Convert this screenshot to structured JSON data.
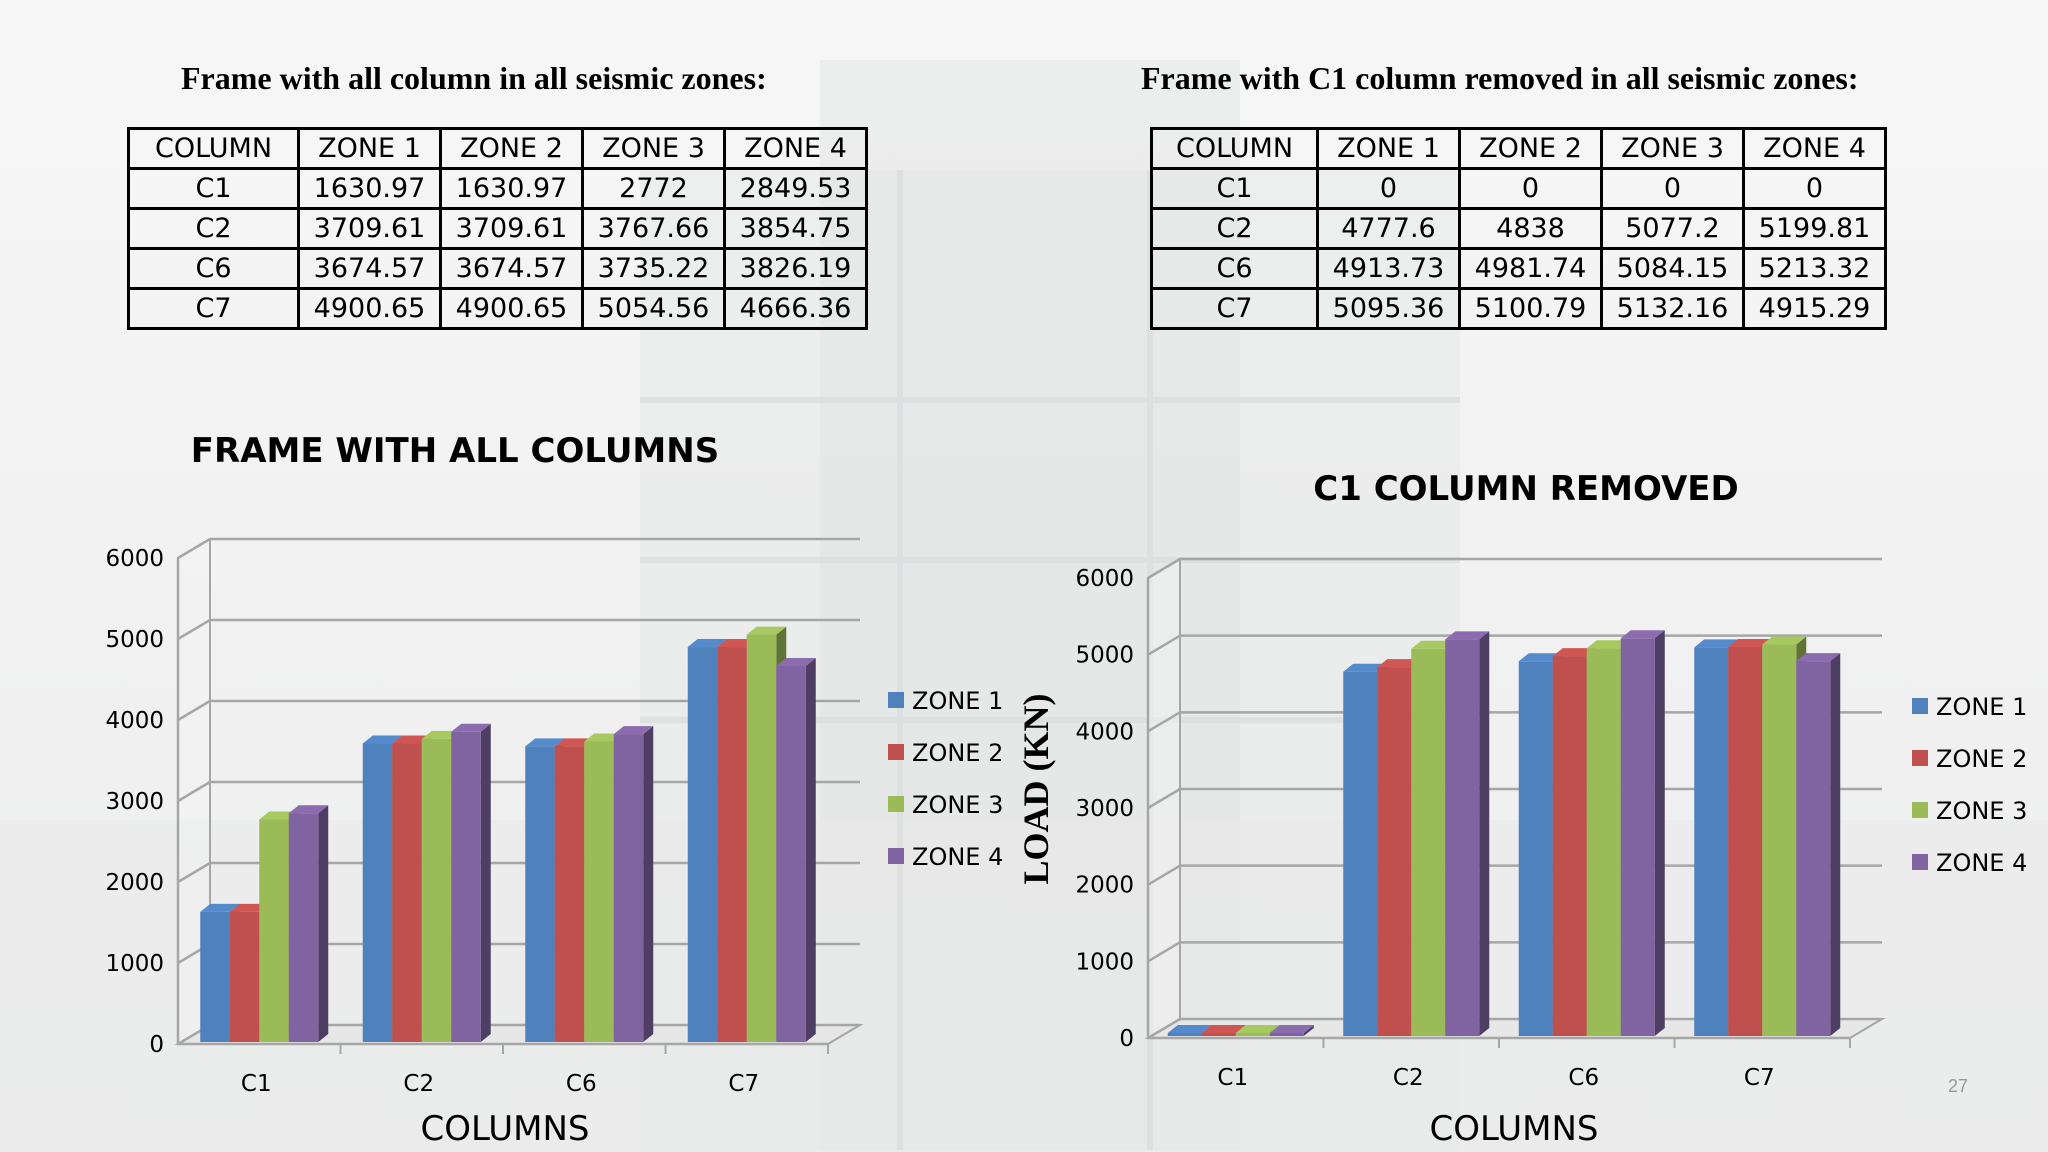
{
  "tables": [
    {
      "title": "Frame with all column in all seismic zones:",
      "headers": [
        "COLUMN",
        "ZONE 1",
        "ZONE 2",
        "ZONE 3",
        "ZONE 4"
      ],
      "rows": [
        [
          "C1",
          "1630.97",
          "1630.97",
          "2772",
          "2849.53"
        ],
        [
          "C2",
          "3709.61",
          "3709.61",
          "3767.66",
          "3854.75"
        ],
        [
          "C6",
          "3674.57",
          "3674.57",
          "3735.22",
          "3826.19"
        ],
        [
          "C7",
          "4900.65",
          "4900.65",
          "5054.56",
          "4666.36"
        ]
      ]
    },
    {
      "title": "Frame with C1 column removed in all seismic zones:",
      "headers": [
        "COLUMN",
        "ZONE 1",
        "ZONE 2",
        "ZONE 3",
        "ZONE 4"
      ],
      "rows": [
        [
          "C1",
          "0",
          "0",
          "0",
          "0"
        ],
        [
          "C2",
          "4777.6",
          "4838",
          "5077.2",
          "5199.81"
        ],
        [
          "C6",
          "4913.73",
          "4981.74",
          "5084.15",
          "5213.32"
        ],
        [
          "C7",
          "5095.36",
          "5100.79",
          "5132.16",
          "4915.29"
        ]
      ]
    }
  ],
  "chart_data": [
    {
      "type": "bar",
      "title": "FRAME WITH ALL COLUMNS",
      "xlabel": "COLUMNS",
      "ylabel": "",
      "categories": [
        "C1",
        "C2",
        "C6",
        "C7"
      ],
      "ylim": [
        0,
        6000
      ],
      "yticks": [
        0,
        1000,
        2000,
        3000,
        4000,
        5000,
        6000
      ],
      "grid": true,
      "legend": "right",
      "series": [
        {
          "name": "ZONE 1",
          "color": "#4f81bd",
          "values": [
            1630.97,
            3709.61,
            3674.57,
            4900.65
          ]
        },
        {
          "name": "ZONE 2",
          "color": "#c0504d",
          "values": [
            1630.97,
            3709.61,
            3674.57,
            4900.65
          ]
        },
        {
          "name": "ZONE 3",
          "color": "#9bbb59",
          "values": [
            2772,
            3767.66,
            3735.22,
            5054.56
          ]
        },
        {
          "name": "ZONE 4",
          "color": "#8064a2",
          "values": [
            2849.53,
            3854.75,
            3826.19,
            4666.36
          ]
        }
      ]
    },
    {
      "type": "bar",
      "title": "C1 COLUMN REMOVED",
      "xlabel": "COLUMNS",
      "ylabel": "LOAD (KN)",
      "categories": [
        "C1",
        "C2",
        "C6",
        "C7"
      ],
      "ylim": [
        0,
        6000
      ],
      "yticks": [
        0,
        1000,
        2000,
        3000,
        4000,
        5000,
        6000
      ],
      "grid": true,
      "legend": "right",
      "series": [
        {
          "name": "ZONE 1",
          "color": "#4f81bd",
          "values": [
            0,
            4777.6,
            4913.73,
            5095.36
          ]
        },
        {
          "name": "ZONE 2",
          "color": "#c0504d",
          "values": [
            0,
            4838,
            4981.74,
            5100.79
          ]
        },
        {
          "name": "ZONE 3",
          "color": "#9bbb59",
          "values": [
            0,
            5077.2,
            5084.15,
            5132.16
          ]
        },
        {
          "name": "ZONE 4",
          "color": "#8064a2",
          "values": [
            0,
            5199.81,
            5213.32,
            4915.29
          ]
        }
      ]
    }
  ],
  "slide_number": "27"
}
